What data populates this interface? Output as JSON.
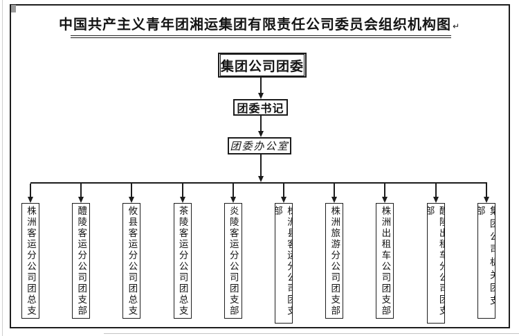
{
  "page": {
    "title": "中国共产主义青年团湘运集团有限责任公司委员会组织机构图",
    "paragraph_mark": "↵",
    "background": "#ffffff",
    "line_color": "#1c1c1c"
  },
  "org": {
    "root": "集团公司团委",
    "secretary": "团委书记",
    "office": "团委办公室",
    "branches": [
      {
        "label": "株洲客运分公司团总支"
      },
      {
        "label": "醴陵客运分公司团支部"
      },
      {
        "label": "攸县客运分公司团总支"
      },
      {
        "label": "茶陵客运分公司团总支"
      },
      {
        "label": "炎陵客运分公司团支部"
      },
      {
        "label": "株洲县客运分公司团支部"
      },
      {
        "label": "株洲旅游分公司团支部"
      },
      {
        "label": "株洲出租车公司团支部"
      },
      {
        "label": "醴陵出租车分公司团支部"
      },
      {
        "label": "集团公司机关团支部"
      }
    ]
  }
}
